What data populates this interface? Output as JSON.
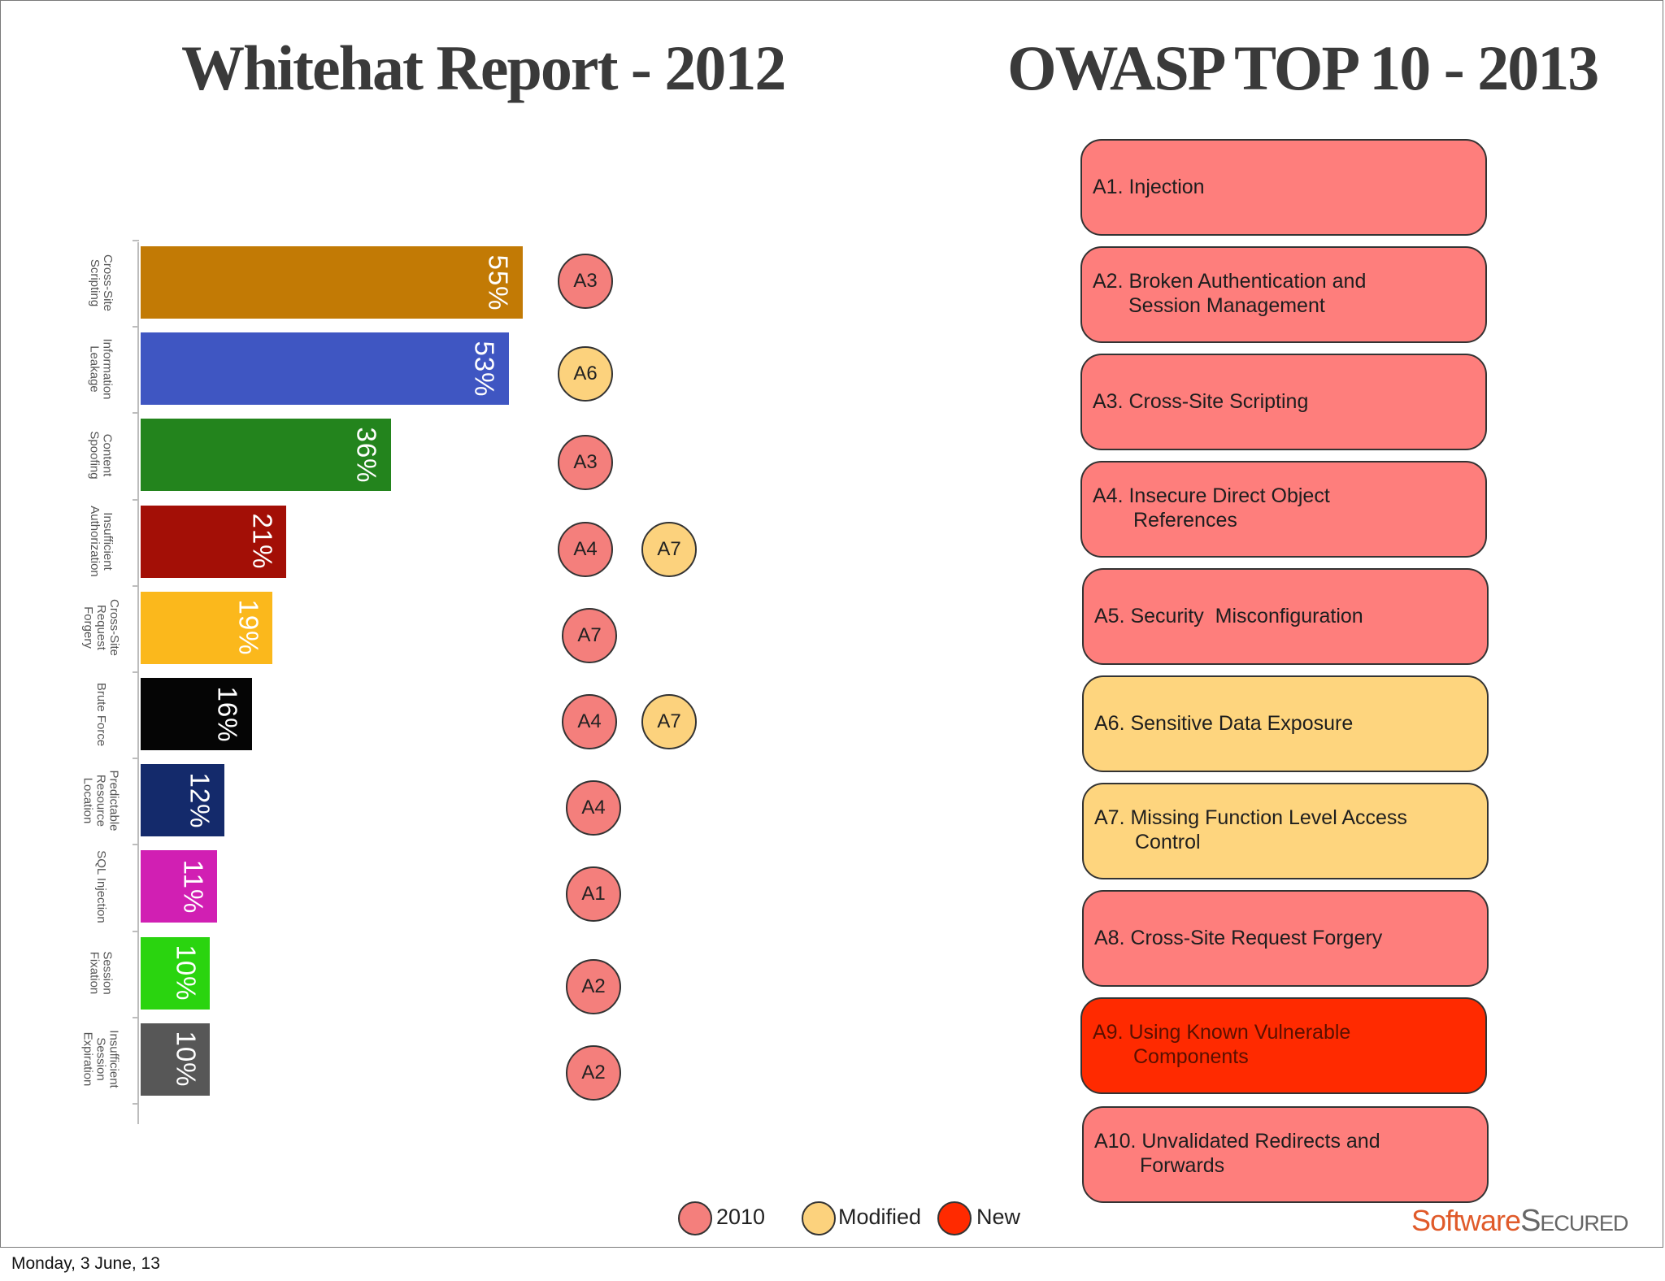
{
  "titles": {
    "left": "Whitehat Report - 2012",
    "right": "OWASP TOP 10 - 2013"
  },
  "chart_data": {
    "type": "bar",
    "orientation": "horizontal",
    "title": "Whitehat Report - 2012",
    "categories": [
      "Cross-Site\nScripting",
      "Information\nLeakage",
      "Content\nSpoofing",
      "Insufficient\nAuthorization",
      "Cross-Site\nRequest\nForgery",
      "Brute Force",
      "Predictable\nResource\nLocation",
      "SQL Injection",
      "Session\nFixation",
      "Insufficient\nSession\nExpiration"
    ],
    "values": [
      55,
      53,
      36,
      21,
      19,
      16,
      12,
      11,
      10,
      10
    ],
    "value_labels": [
      "55%",
      "53%",
      "36%",
      "21%",
      "19%",
      "16%",
      "12%",
      "11%",
      "10%",
      "10%"
    ],
    "bar_colors": [
      "#c27a05",
      "#3f56c2",
      "#23841d",
      "#a30f06",
      "#fbb81c",
      "#050505",
      "#142a6b",
      "#d11fb3",
      "#2ad40f",
      "#575757"
    ],
    "xlim": [
      0,
      60
    ],
    "xlabel": "",
    "ylabel": "",
    "grid": false
  },
  "mappings": [
    [
      {
        "label": "A3",
        "kind": "2010"
      }
    ],
    [
      {
        "label": "A6",
        "kind": "modified"
      }
    ],
    [
      {
        "label": "A3",
        "kind": "2010"
      }
    ],
    [
      {
        "label": "A4",
        "kind": "2010"
      },
      {
        "label": "A7",
        "kind": "modified"
      }
    ],
    [
      {
        "label": "A7",
        "kind": "2010"
      }
    ],
    [
      {
        "label": "A4",
        "kind": "2010"
      },
      {
        "label": "A7",
        "kind": "modified"
      }
    ],
    [
      {
        "label": "A4",
        "kind": "2010"
      }
    ],
    [
      {
        "label": "A1",
        "kind": "2010"
      }
    ],
    [
      {
        "label": "A2",
        "kind": "2010"
      }
    ],
    [
      {
        "label": "A2",
        "kind": "2010"
      }
    ]
  ],
  "owasp_items": [
    {
      "line1": "A1. Injection",
      "line2": "",
      "kind": "2010"
    },
    {
      "line1": "A2. Broken Authentication and",
      "line2": "Session Management",
      "kind": "2010"
    },
    {
      "line1": "A3. Cross-Site Scripting",
      "line2": "",
      "kind": "2010"
    },
    {
      "line1": "A4. Insecure Direct Object",
      "line2": "References",
      "kind": "2010"
    },
    {
      "line1": "A5. Security  Misconfiguration",
      "line2": "",
      "kind": "2010"
    },
    {
      "line1": "A6. Sensitive Data Exposure",
      "line2": "",
      "kind": "modified"
    },
    {
      "line1": "A7. Missing Function Level Access",
      "line2": "Control",
      "kind": "modified"
    },
    {
      "line1": "A8. Cross-Site Request Forgery",
      "line2": "",
      "kind": "2010"
    },
    {
      "line1": "A9. Using Known Vulnerable",
      "line2": "Components",
      "kind": "new"
    },
    {
      "line1": "A10. Unvalidated Redirects and",
      "line2": "Forwards",
      "kind": "2010"
    }
  ],
  "legend": [
    {
      "label": "2010",
      "kind": "2010"
    },
    {
      "label": "Modified",
      "kind": "modified"
    },
    {
      "label": "New",
      "kind": "new"
    }
  ],
  "colors": {
    "2010": "#f47f7c",
    "modified": "#fcd27d",
    "new": "#ff2a00"
  },
  "logo": {
    "part1": "Software",
    "part2": "Secured"
  },
  "footer": {
    "date": "Monday, 3 June, 13"
  }
}
